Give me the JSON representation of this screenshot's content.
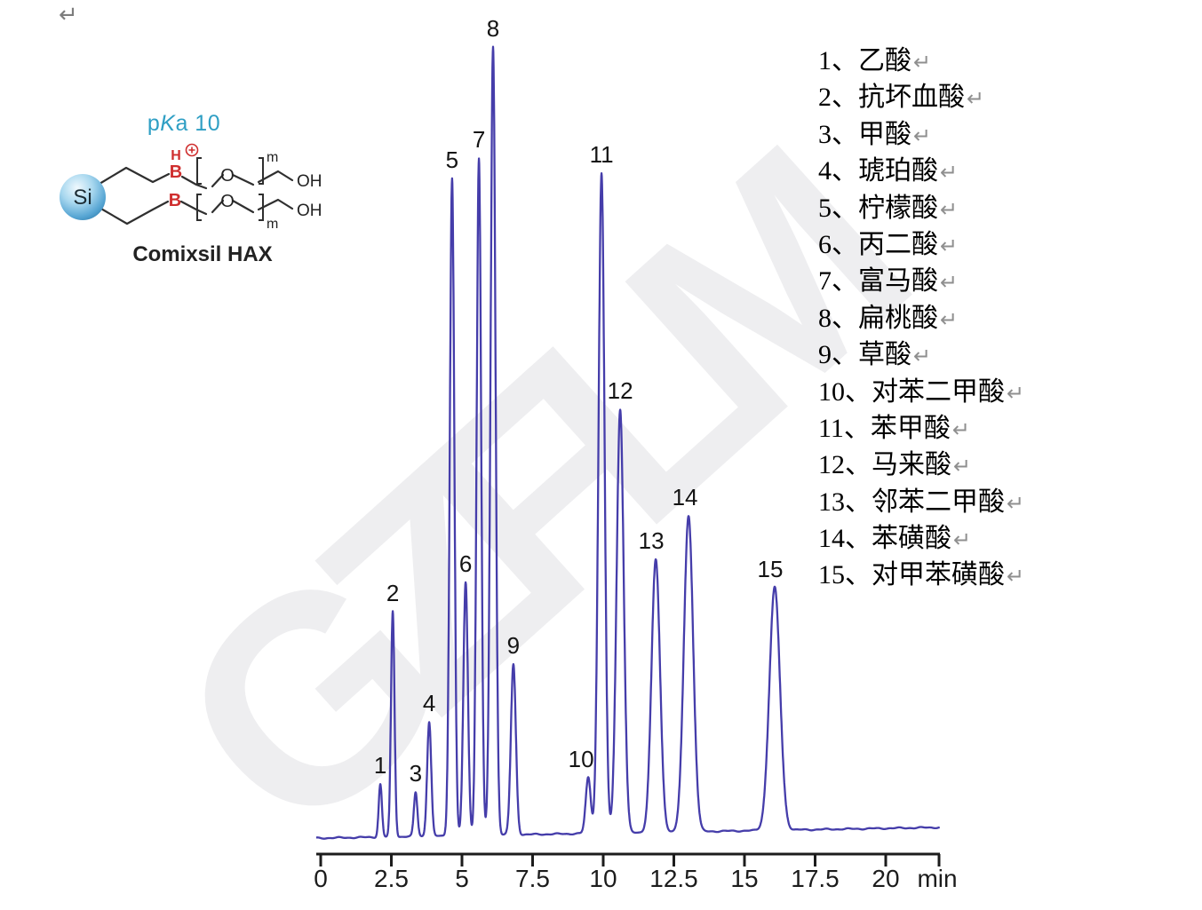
{
  "page": {
    "return_mark": "↵",
    "watermark_text": "GZFLM",
    "background_color": "#ffffff"
  },
  "structure": {
    "pka": {
      "prefix": "p",
      "italic": "K",
      "suffix": "a 10"
    },
    "pka_color": "#2f9fc4",
    "caption": "Comixsil HAX",
    "atoms": {
      "si": "Si",
      "b": "B",
      "h": "H",
      "o": "O",
      "oh": "OH",
      "m": "m"
    },
    "heteroatom_color": "#cf2e2e",
    "bond_color": "#2f2f2f",
    "sphere_color": "#5aa7d4"
  },
  "legend": {
    "separator": "、"
  },
  "chart_data": {
    "type": "line",
    "title": "",
    "xlabel": "min",
    "x_unit": "min",
    "ylabel": "",
    "x_ticks": [
      0,
      2.5,
      5,
      7.5,
      10,
      12.5,
      15,
      17.5,
      20
    ],
    "xlim": [
      0,
      21.9
    ],
    "grid": false,
    "legend_position": "right",
    "trace_color": "#453daa",
    "axis_color": "#1c1c1c",
    "baseline_note": "flat baseline with slight downward drift to the right",
    "peaks": [
      {
        "id": 1,
        "name": "乙酸",
        "rt_min": 2.11,
        "rel_height_pct": 6.7,
        "sigma_min": 0.057
      },
      {
        "id": 2,
        "name": "抗坏血酸",
        "rt_min": 2.55,
        "rel_height_pct": 28.6,
        "sigma_min": 0.062
      },
      {
        "id": 3,
        "name": "甲酸",
        "rt_min": 3.36,
        "rel_height_pct": 5.6,
        "sigma_min": 0.062
      },
      {
        "id": 4,
        "name": "琥珀酸",
        "rt_min": 3.84,
        "rel_height_pct": 14.5,
        "sigma_min": 0.072
      },
      {
        "id": 5,
        "name": "柠檬酸",
        "rt_min": 4.65,
        "rel_height_pct": 83.4,
        "sigma_min": 0.08
      },
      {
        "id": 6,
        "name": "丙二酸",
        "rt_min": 5.13,
        "rel_height_pct": 32.1,
        "sigma_min": 0.08
      },
      {
        "id": 7,
        "name": "富马酸",
        "rt_min": 5.6,
        "rel_height_pct": 85.9,
        "sigma_min": 0.08
      },
      {
        "id": 8,
        "name": "扁桃酸",
        "rt_min": 6.1,
        "rel_height_pct": 100,
        "sigma_min": 0.088
      },
      {
        "id": 9,
        "name": "草酸",
        "rt_min": 6.82,
        "rel_height_pct": 21.6,
        "sigma_min": 0.088
      },
      {
        "id": 10,
        "name": "对苯二甲酸",
        "rt_min": 9.47,
        "rel_height_pct": 7.1,
        "sigma_min": 0.088
      },
      {
        "id": 11,
        "name": "苯甲酸",
        "rt_min": 9.94,
        "rel_height_pct": 83.7,
        "sigma_min": 0.107
      },
      {
        "id": 12,
        "name": "马来酸",
        "rt_min": 10.6,
        "rel_height_pct": 53.7,
        "sigma_min": 0.126
      },
      {
        "id": 13,
        "name": "邻苯二甲酸",
        "rt_min": 11.86,
        "rel_height_pct": 34.6,
        "sigma_min": 0.15
      },
      {
        "id": 14,
        "name": "苯磺酸",
        "rt_min": 13.02,
        "rel_height_pct": 40.1,
        "sigma_min": 0.163
      },
      {
        "id": 15,
        "name": "对甲苯磺酸",
        "rt_min": 16.07,
        "rel_height_pct": 30.8,
        "sigma_min": 0.188
      }
    ]
  }
}
